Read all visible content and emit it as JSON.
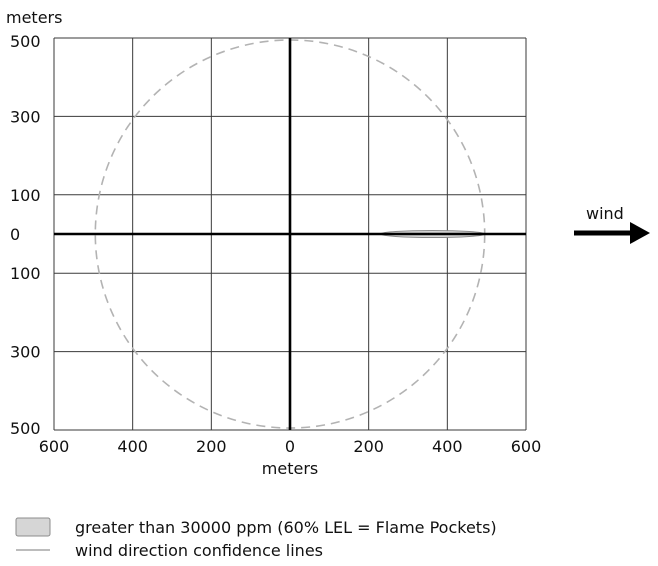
{
  "chart_data": {
    "type": "scatter",
    "title": "",
    "xlabel": "meters",
    "ylabel": "meters",
    "xlim": [
      -600,
      600
    ],
    "ylim": [
      -500,
      500
    ],
    "grid": true,
    "x_ticks": [
      {
        "value": -600,
        "label": "600"
      },
      {
        "value": -400,
        "label": "400"
      },
      {
        "value": -200,
        "label": "200"
      },
      {
        "value": 0,
        "label": "0"
      },
      {
        "value": 200,
        "label": "200"
      },
      {
        "value": 400,
        "label": "400"
      },
      {
        "value": 600,
        "label": "600"
      }
    ],
    "y_ticks": [
      {
        "value": 500,
        "label": "500"
      },
      {
        "value": 300,
        "label": "300"
      },
      {
        "value": 100,
        "label": "100"
      },
      {
        "value": 0,
        "label": "0"
      },
      {
        "value": -100,
        "label": "100"
      },
      {
        "value": -300,
        "label": "300"
      },
      {
        "value": -500,
        "label": "500"
      }
    ],
    "series": [
      {
        "name": "greater than 30000 ppm (60% LEL = Flame Pockets)",
        "kind": "plume",
        "x_start": 230,
        "x_end": 495,
        "half_width": 9,
        "color": "#d9d9d9",
        "stroke": "#8c8c8c"
      },
      {
        "name": "wind direction confidence lines",
        "kind": "circle",
        "center": [
          0,
          0
        ],
        "radius": 495,
        "color": "#b3b3b3",
        "dashed": true
      }
    ],
    "legend_position": "bottom-left",
    "annotations": [
      {
        "text": "wind",
        "arrow_direction": "right"
      }
    ]
  },
  "labels": {
    "y_unit": "meters",
    "x_unit": "meters",
    "wind": "wind"
  },
  "legend": {
    "items": [
      {
        "label": "greater than 30000 ppm (60% LEL = Flame Pockets)",
        "swatch": "plume"
      },
      {
        "label": "wind direction confidence lines",
        "swatch": "line"
      }
    ]
  }
}
